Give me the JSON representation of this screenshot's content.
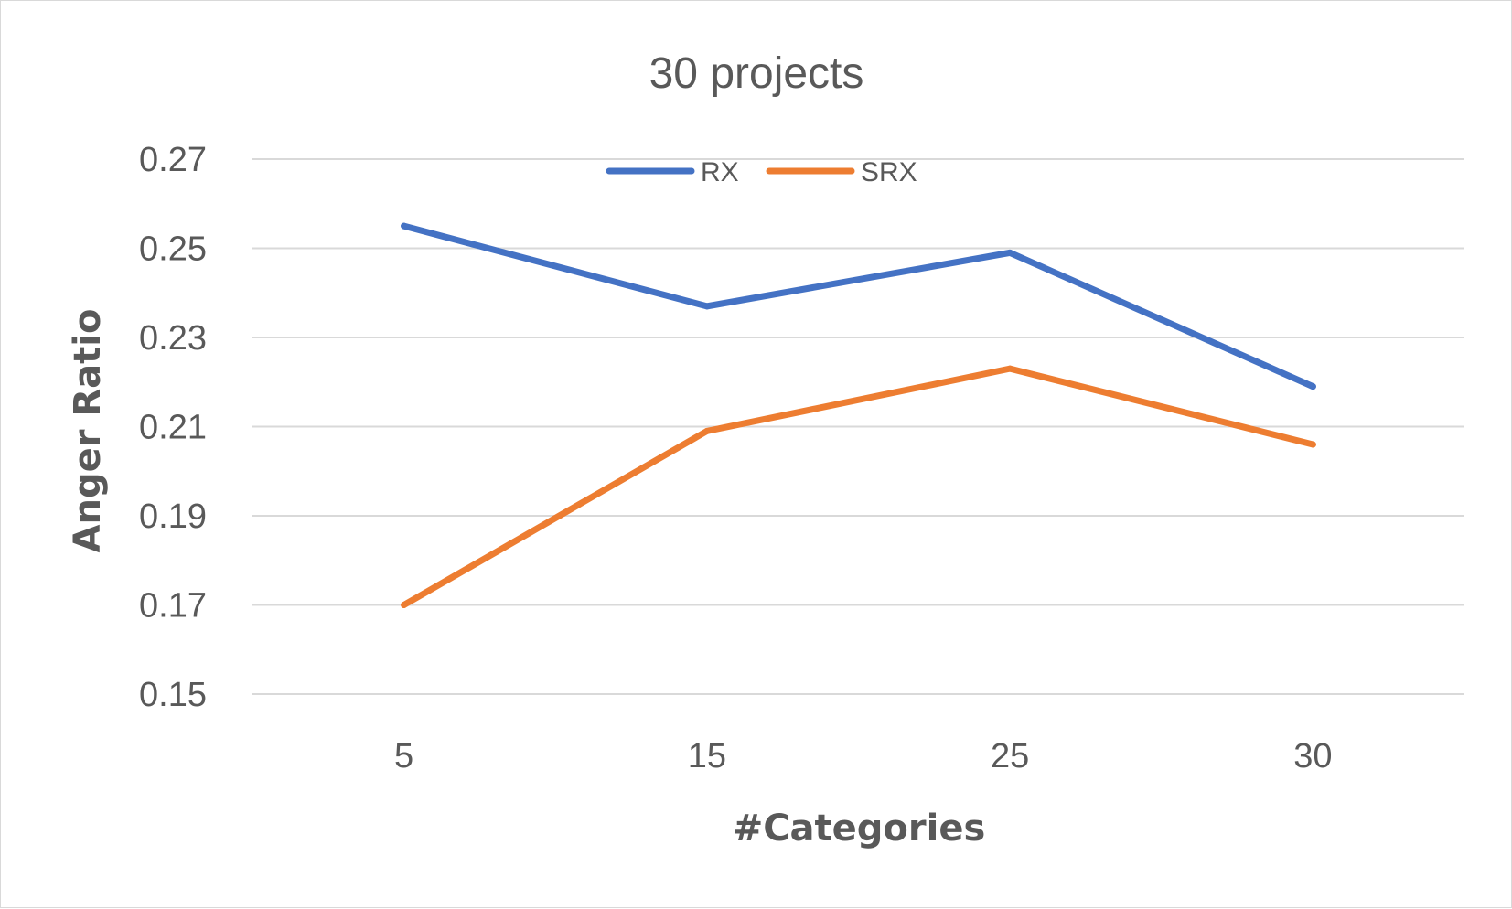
{
  "chart_data": {
    "type": "line",
    "title": "30 projects",
    "xlabel": "#Categories",
    "ylabel": "Anger Ratio",
    "categories": [
      "5",
      "15",
      "25",
      "30"
    ],
    "ylim": [
      0.15,
      0.27
    ],
    "yticks": [
      "0.27",
      "0.25",
      "0.23",
      "0.21",
      "0.19",
      "0.17",
      "0.15"
    ],
    "grid": true,
    "legend_position": "top-center",
    "series": [
      {
        "name": "RX",
        "color": "#4472c4",
        "values": [
          0.255,
          0.237,
          0.249,
          0.219
        ]
      },
      {
        "name": "SRX",
        "color": "#ed7d31",
        "values": [
          0.17,
          0.209,
          0.223,
          0.206
        ]
      }
    ]
  }
}
